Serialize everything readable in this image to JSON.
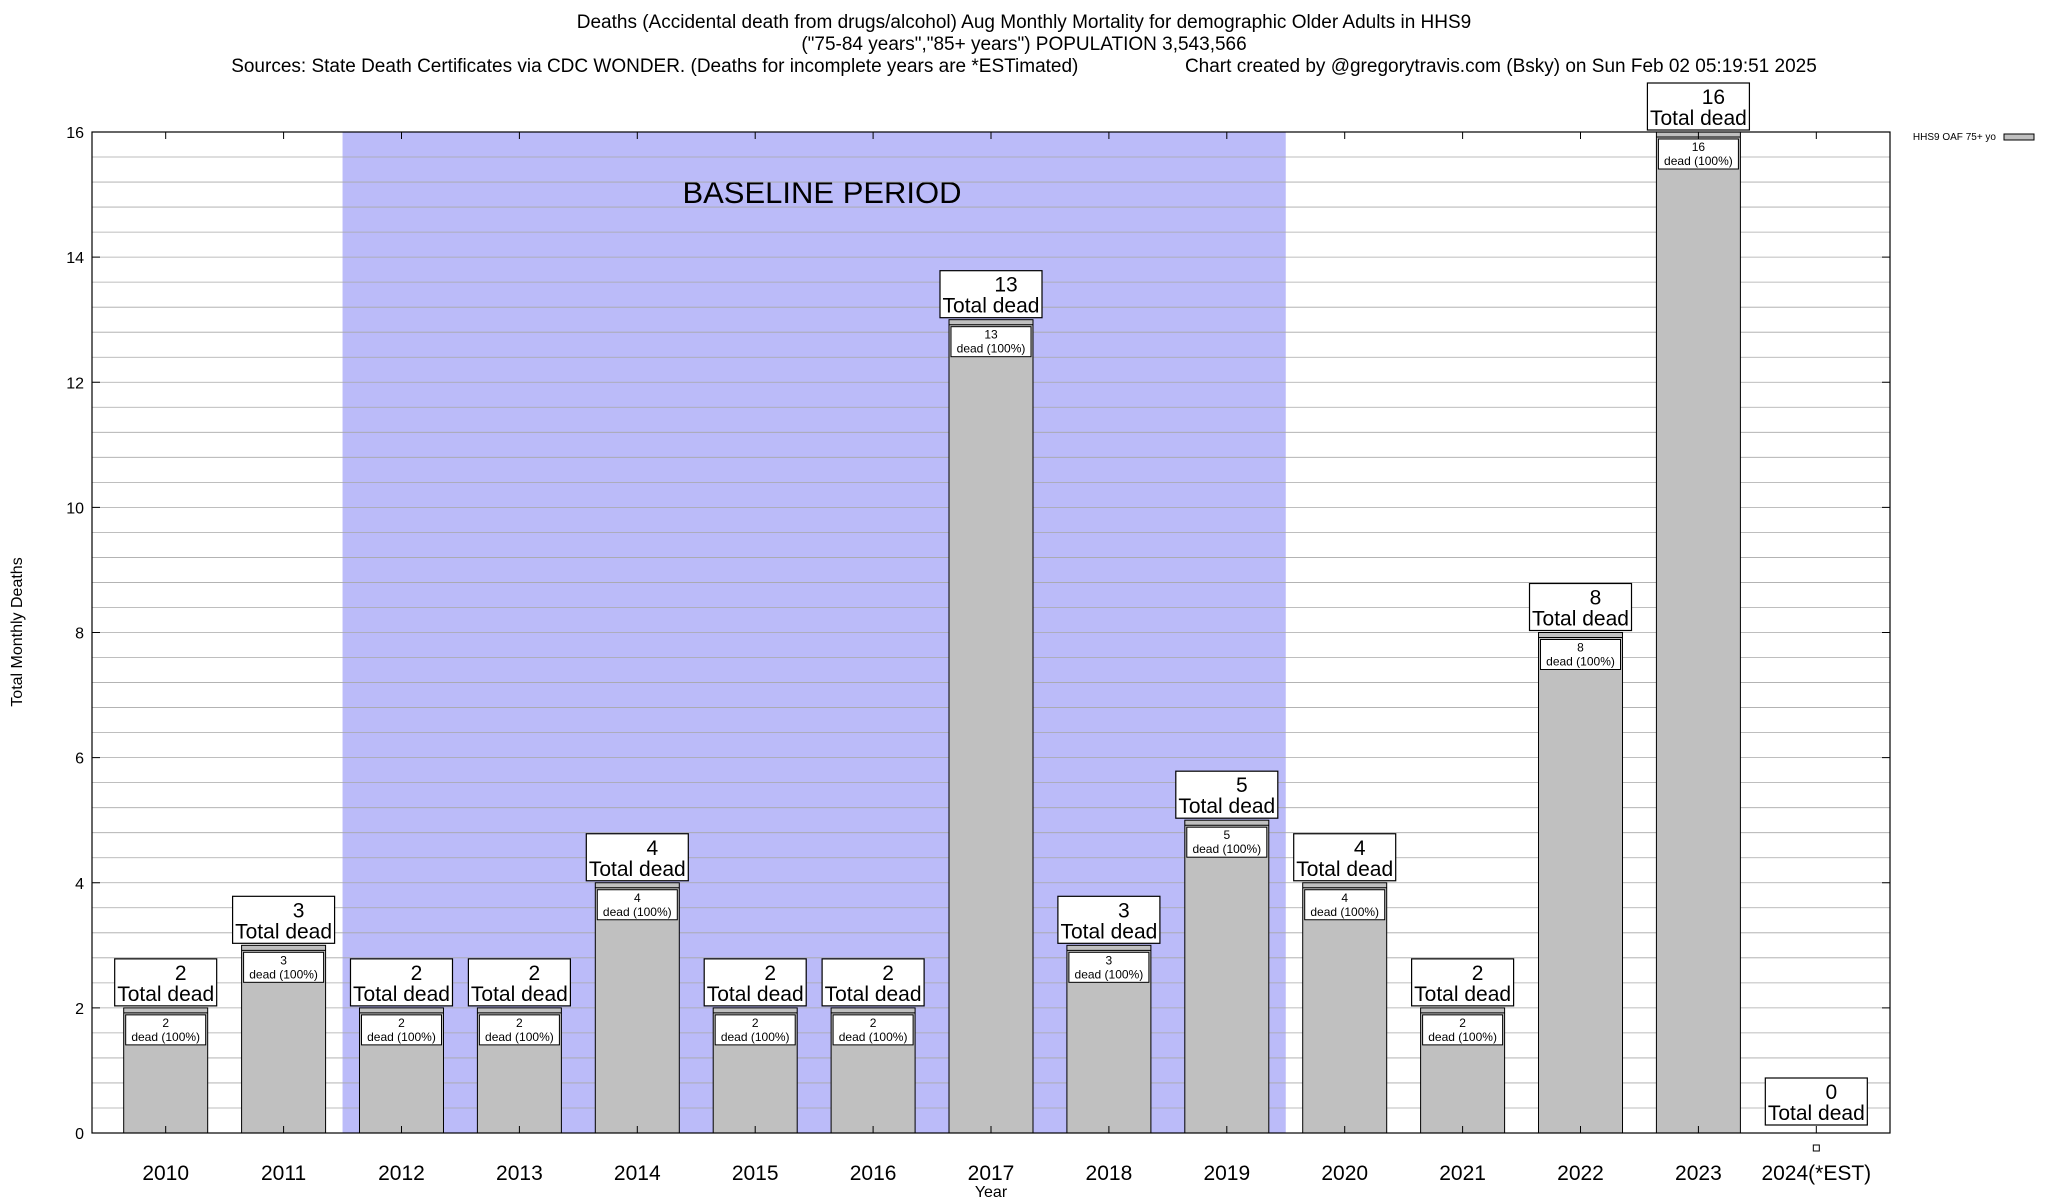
{
  "chart_data": {
    "type": "bar",
    "title": "Deaths (Accidental death from drugs/alcohol) Aug Monthly Mortality for demographic Older Adults in HHS9",
    "subtitle": "(\"75-84 years\",\"85+ years\") POPULATION 3,543,566",
    "sources": "Sources: State Death Certificates via CDC WONDER. (Deaths for incomplete years are *ESTimated)",
    "credit": "Chart created by @gregorytravis.com (Bsky) on Sun Feb 02 05:19:51 2025",
    "xlabel": "Year",
    "ylabel": "Total Monthly Deaths",
    "ylim": [
      0,
      16
    ],
    "yticks": [
      0,
      2,
      4,
      6,
      8,
      10,
      12,
      14,
      16
    ],
    "grid": true,
    "categories": [
      "2010",
      "2011",
      "2012",
      "2013",
      "2014",
      "2015",
      "2016",
      "2017",
      "2018",
      "2019",
      "2020",
      "2021",
      "2022",
      "2023",
      "2024(*EST)"
    ],
    "series": [
      {
        "name": "HHS9 OAF 75+ yo",
        "values": [
          2,
          3,
          2,
          2,
          4,
          2,
          2,
          13,
          3,
          5,
          4,
          2,
          8,
          16,
          0
        ],
        "color": "#c0c0c0"
      }
    ],
    "total_label_suffix": "Total dead",
    "inner_label_suffix": "dead (100%)",
    "baseline": {
      "label": "BASELINE PERIOD",
      "from_category": "2012",
      "to_category": "2019",
      "color": "#bbbbf9"
    },
    "legend_position": "top-right"
  }
}
